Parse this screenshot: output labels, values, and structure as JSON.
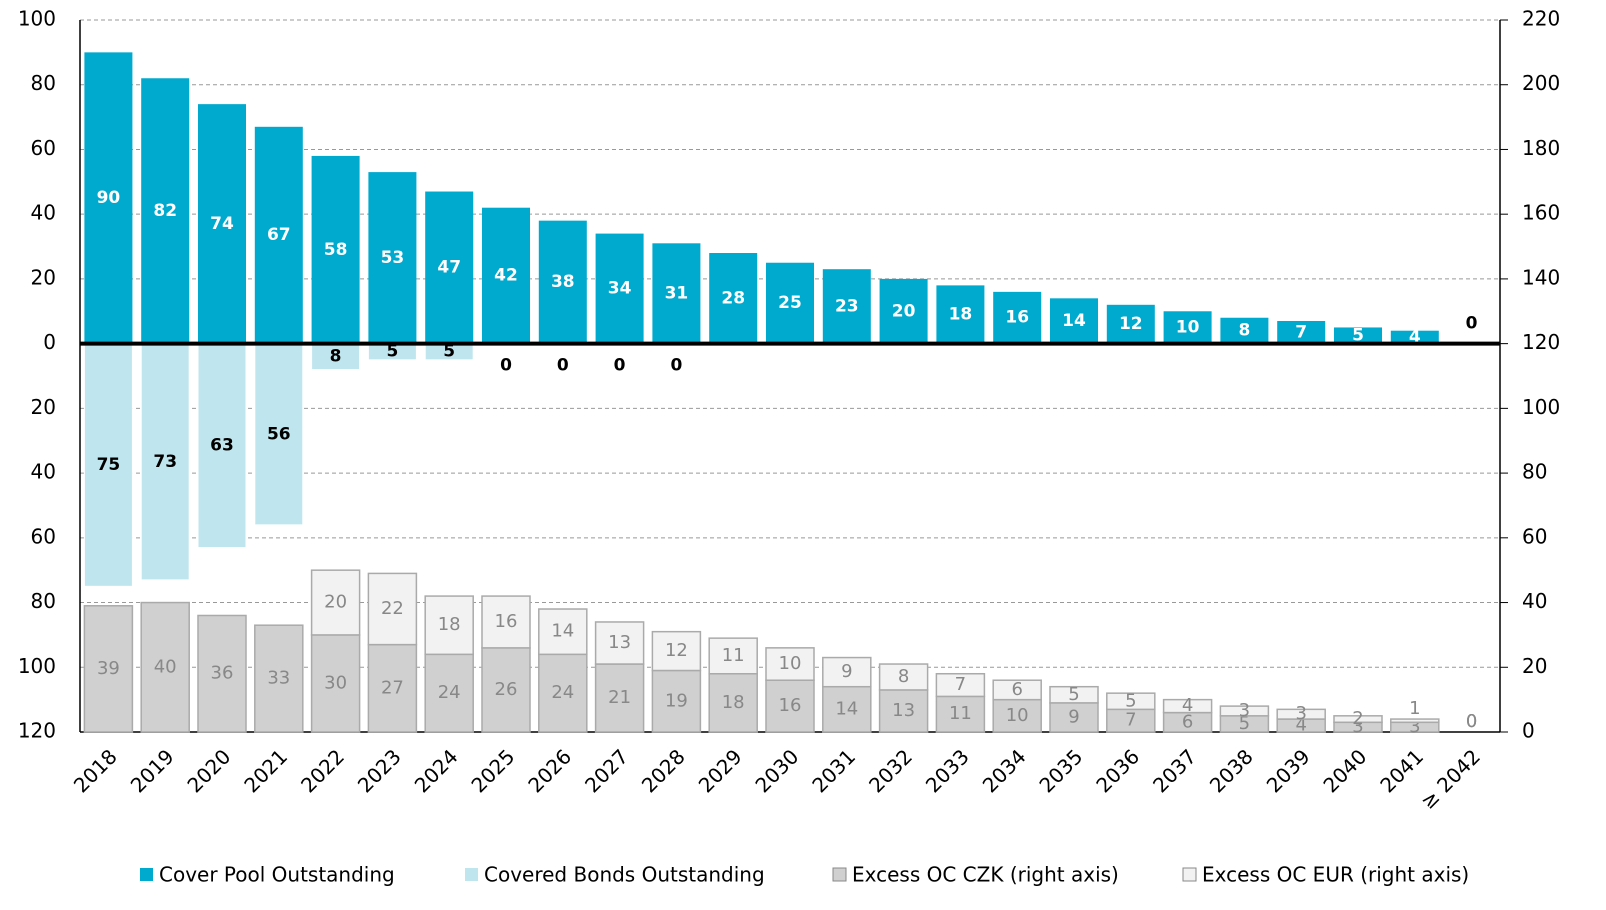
{
  "chart_data": {
    "type": "bar",
    "categories": [
      "2018",
      "2019",
      "2020",
      "2021",
      "2022",
      "2023",
      "2024",
      "2025",
      "2026",
      "2027",
      "2028",
      "2029",
      "2030",
      "2031",
      "2032",
      "2033",
      "2034",
      "2035",
      "2036",
      "2037",
      "2038",
      "2039",
      "2040",
      "2041",
      "≥ 2042"
    ],
    "series": [
      {
        "name": "Cover Pool Outstanding",
        "color": "#00a9ce",
        "values": [
          90,
          82,
          74,
          67,
          58,
          53,
          47,
          42,
          38,
          34,
          31,
          28,
          25,
          23,
          20,
          18,
          16,
          14,
          12,
          10,
          8,
          7,
          5,
          4,
          0
        ]
      },
      {
        "name": "Covered Bonds Outstanding",
        "color": "#bfe6ee",
        "values": [
          -75,
          -73,
          -63,
          -56,
          -8,
          -5,
          -5,
          0,
          0,
          0,
          0,
          null,
          null,
          null,
          null,
          null,
          null,
          null,
          null,
          null,
          null,
          null,
          null,
          null,
          null
        ],
        "value_labels": [
          "75",
          "73",
          "63",
          "56",
          "8",
          "5",
          "5",
          "0",
          "0",
          "0",
          "0",
          null,
          null,
          null,
          null,
          null,
          null,
          null,
          null,
          null,
          null,
          null,
          null,
          null,
          null
        ]
      },
      {
        "name": "Excess OC CZK (right axis)",
        "color": "#d0d0d0",
        "axis": "y2",
        "values": [
          39,
          40,
          36,
          33,
          30,
          27,
          24,
          26,
          24,
          21,
          19,
          18,
          16,
          14,
          13,
          11,
          10,
          9,
          7,
          6,
          5,
          4,
          3,
          3,
          0
        ]
      },
      {
        "name": "Excess OC EUR (right axis)",
        "color": "#f2f2f2",
        "axis": "y2",
        "values": [
          null,
          null,
          null,
          null,
          20,
          22,
          18,
          16,
          14,
          13,
          12,
          11,
          10,
          9,
          8,
          7,
          6,
          5,
          5,
          4,
          3,
          3,
          2,
          1,
          0
        ]
      }
    ],
    "ylim": [
      -120,
      100
    ],
    "yticks": [
      {
        "value": -120,
        "label": "120"
      },
      {
        "value": -100,
        "label": "100"
      },
      {
        "value": -80,
        "label": "80"
      },
      {
        "value": -60,
        "label": "60"
      },
      {
        "value": -40,
        "label": "40"
      },
      {
        "value": -20,
        "label": "20"
      },
      0,
      20,
      40,
      60,
      80,
      100
    ],
    "y2lim": [
      0,
      220
    ],
    "y2ticks": [
      0,
      20,
      40,
      60,
      80,
      100,
      120,
      140,
      160,
      180,
      200,
      220
    ],
    "grid": true
  }
}
